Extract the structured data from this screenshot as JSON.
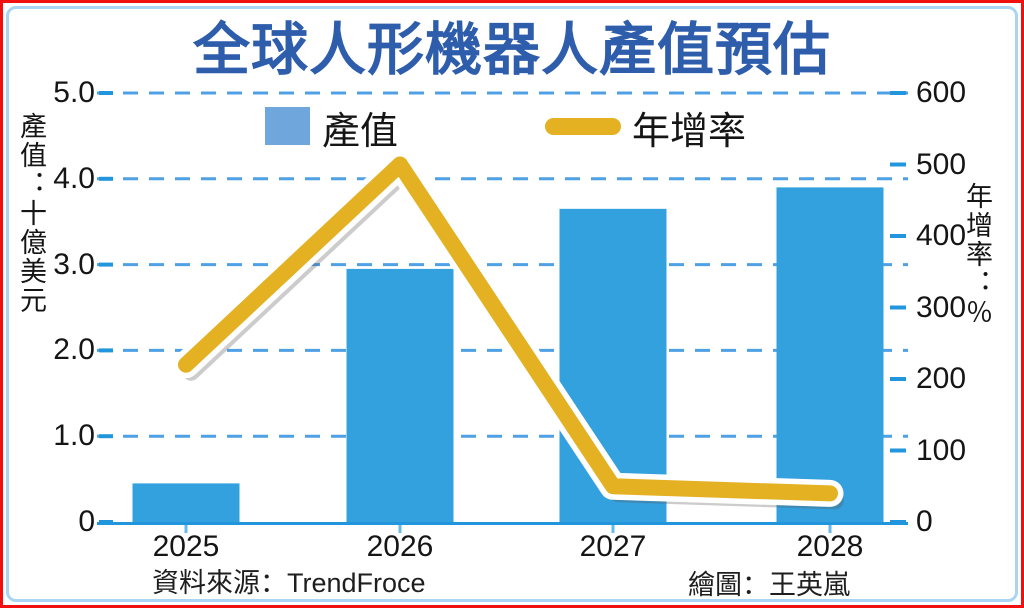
{
  "title": "全球人形機器人產值預估",
  "chart_data": {
    "type": "bar",
    "combo": "bar+line dual-axis",
    "title": "全球人形機器人產值預估",
    "categories": [
      "2025",
      "2026",
      "2027",
      "2028"
    ],
    "series": [
      {
        "name": "產值",
        "type": "bar",
        "axis": "left",
        "unit": "十億美元",
        "values": [
          0.45,
          2.95,
          3.65,
          3.9
        ]
      },
      {
        "name": "年增率",
        "type": "line",
        "axis": "right",
        "unit": "%",
        "values": [
          220,
          500,
          50,
          40
        ]
      }
    ],
    "left_axis": {
      "title": "產值：十億美元",
      "range": [
        0,
        5
      ],
      "tick_labels": [
        "5.0",
        "4.0",
        "3.0",
        "2.0",
        "1.0",
        "0"
      ],
      "tick_values": [
        5,
        4,
        3,
        2,
        1,
        0
      ]
    },
    "right_axis": {
      "title": "年增率：％",
      "range": [
        0,
        600
      ],
      "tick_labels": [
        "600",
        "500",
        "400",
        "300",
        "200",
        "100",
        "0"
      ],
      "tick_values": [
        600,
        500,
        400,
        300,
        200,
        100,
        0
      ]
    },
    "grid": "horizontal dashed",
    "legend_position": "top inside"
  },
  "footer": {
    "source": "資料來源：TrendFroce",
    "credit": "繪圖：王英嵐"
  },
  "colors": {
    "title": "#2d5dab",
    "bar": "#34a1df",
    "legend_bar_swatch": "#6fa6db",
    "line": "#e3b122",
    "line_outline": "#ffffff",
    "grid": "#4fa0e4",
    "axis": "#2196dc",
    "x_tick": "#66bbee",
    "frame_outer": "#f01010",
    "frame_inner": "#aad4f2",
    "text": "#151515"
  }
}
